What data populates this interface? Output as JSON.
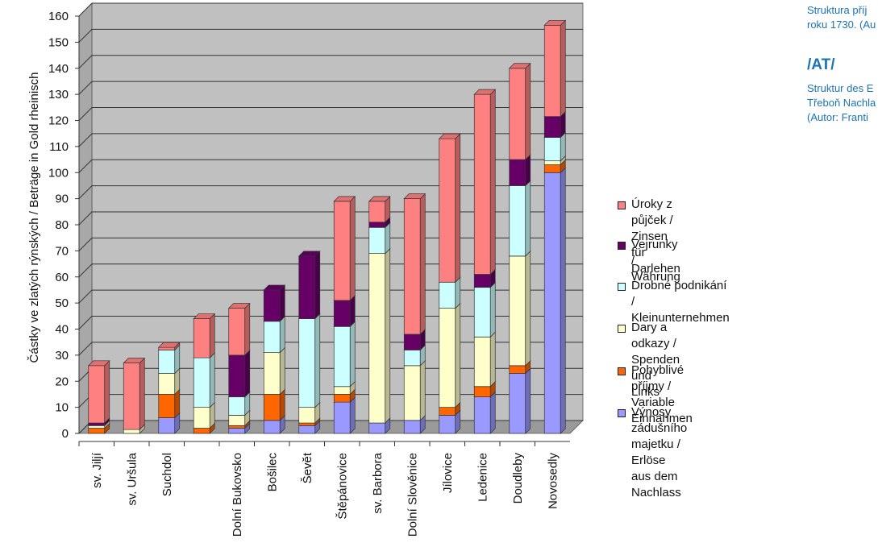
{
  "annotations": {
    "cz_caption": "Struktura příj\nroku 1730. (Au",
    "tag": "/AT/",
    "de_caption": "Struktur des E\nTřeboň Nachla\n(Autor: Franti"
  },
  "chart_data": {
    "type": "bar",
    "stacked": true,
    "three_d": true,
    "ylabel": "Částky ve zlatých rýnských / Beträge in Gold rheinisch",
    "ylim": [
      0,
      160
    ],
    "yticks": [
      "0",
      "10",
      "20",
      "30",
      "40",
      "50",
      "60",
      "70",
      "80",
      "90",
      "100",
      "110",
      "120",
      "130",
      "140",
      "150",
      "160"
    ],
    "grid": true,
    "legend_position": "right",
    "categories": [
      "sv. Jiljí",
      "sv. Uršula",
      "Suchdol",
      "",
      "Dolní Bukovsko",
      "Bošilec",
      "Ševĕt",
      "Štěpánovice",
      "sv. Barbora",
      "Dolní Slověnice",
      "Jílovice",
      "Ledenice",
      "Doudleby",
      "Novosedly"
    ],
    "series": [
      {
        "name": "Výnosy zádušního majetku / Erlöse aus dem Nachlass",
        "color": "#9999ff",
        "values": [
          0,
          0,
          6,
          0,
          2,
          5,
          3,
          12,
          4,
          5,
          7,
          14,
          23,
          100
        ]
      },
      {
        "name": "Pohyblivé příjmy / Variable Einnahmen",
        "color": "#ff6600",
        "values": [
          2,
          0,
          9,
          2,
          1,
          10,
          1,
          3,
          0,
          0,
          3,
          4,
          3,
          3
        ]
      },
      {
        "name": "Dary a odkazy / Spenden und Links",
        "color": "#ffffcc",
        "values": [
          1,
          1.5,
          8,
          8,
          4,
          16,
          6,
          3,
          65,
          21,
          38,
          19,
          42,
          1.5
        ]
      },
      {
        "name": "Drobné podnikání / Kleinunternehmen",
        "color": "#ccffff",
        "values": [
          0,
          0,
          9,
          19,
          7,
          12,
          34,
          23,
          10,
          6,
          10,
          19,
          27,
          9
        ]
      },
      {
        "name": "Vejrunky / Währung",
        "color": "#660066",
        "values": [
          1,
          0,
          0,
          0,
          16,
          12,
          24,
          10,
          2,
          6,
          0,
          5,
          10,
          8
        ]
      },
      {
        "name": "Úroky z půjček / Zinsen für Darlehen",
        "color": "#ff8080",
        "values": [
          22,
          25.5,
          1,
          15,
          18,
          0,
          0,
          38,
          8,
          52,
          55,
          69,
          35,
          35
        ]
      }
    ]
  }
}
